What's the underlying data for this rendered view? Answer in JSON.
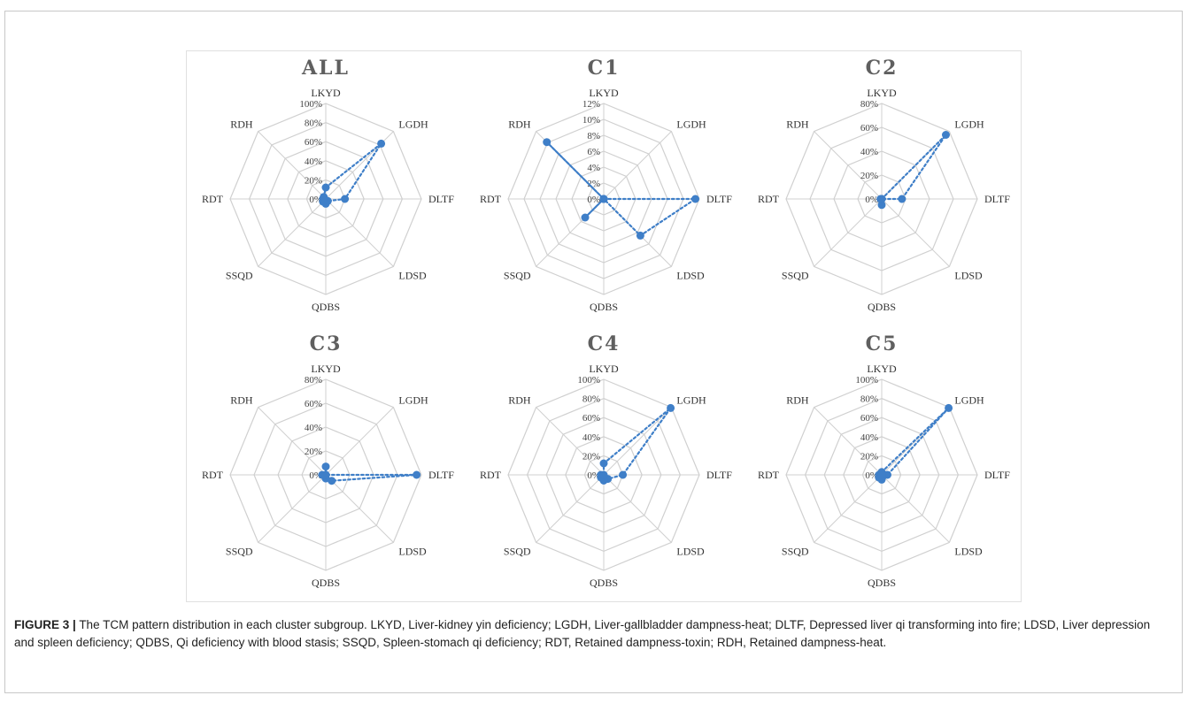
{
  "caption": {
    "label": "FIGURE 3 |",
    "text": "The TCM pattern distribution in each cluster subgroup. LKYD, Liver-kidney yin deficiency; LGDH, Liver-gallbladder dampness-heat; DLTF, Depressed liver qi transforming into fire; LDSD, Liver depression and spleen deficiency; QDBS, Qi deficiency with blood stasis; SSQD, Spleen-stomach qi deficiency; RDT, Retained dampness-toxin; RDH, Retained dampness-heat."
  },
  "colors": {
    "series": "#3f7fc8",
    "grid": "#d0d0d0",
    "title": "#5f5f5f"
  },
  "chart_data": [
    {
      "type": "radar",
      "title": "ALL",
      "categories": [
        "LKYD",
        "LGDH",
        "DLTF",
        "LDSD",
        "QDBS",
        "SSQD",
        "RDT",
        "RDH"
      ],
      "ticks": [
        "0%",
        "20%",
        "40%",
        "60%",
        "80%",
        "100%"
      ],
      "max": 100,
      "values": [
        12,
        82,
        20,
        3,
        5,
        4,
        3,
        3
      ]
    },
    {
      "type": "radar",
      "title": "C1",
      "categories": [
        "LKYD",
        "LGDH",
        "DLTF",
        "LDSD",
        "QDBS",
        "SSQD",
        "RDT",
        "RDH"
      ],
      "ticks": [
        "0%",
        "2%",
        "4%",
        "6%",
        "8%",
        "10%",
        "12%"
      ],
      "max": 12,
      "values": [
        0,
        0,
        11.5,
        6.5,
        0,
        3.3,
        0,
        10.1
      ]
    },
    {
      "type": "radar",
      "title": "C2",
      "categories": [
        "LKYD",
        "LGDH",
        "DLTF",
        "LDSD",
        "QDBS",
        "SSQD",
        "RDT",
        "RDH"
      ],
      "ticks": [
        "0%",
        "20%",
        "40%",
        "60%",
        "80%"
      ],
      "max": 80,
      "values": [
        0,
        76,
        17,
        0,
        5,
        0,
        1,
        0
      ]
    },
    {
      "type": "radar",
      "title": "C3",
      "categories": [
        "LKYD",
        "LGDH",
        "DLTF",
        "LDSD",
        "QDBS",
        "SSQD",
        "RDT",
        "RDH"
      ],
      "ticks": [
        "0%",
        "20%",
        "40%",
        "60%",
        "80%"
      ],
      "max": 80,
      "values": [
        7,
        0,
        76,
        7,
        3,
        0,
        3,
        0
      ]
    },
    {
      "type": "radar",
      "title": "C4",
      "categories": [
        "LKYD",
        "LGDH",
        "DLTF",
        "LDSD",
        "QDBS",
        "SSQD",
        "RDT",
        "RDH"
      ],
      "ticks": [
        "0%",
        "20%",
        "40%",
        "60%",
        "80%",
        "100%"
      ],
      "max": 100,
      "values": [
        12,
        99,
        20,
        6,
        6,
        4,
        3,
        0
      ]
    },
    {
      "type": "radar",
      "title": "C5",
      "categories": [
        "LKYD",
        "LGDH",
        "DLTF",
        "LDSD",
        "QDBS",
        "SSQD",
        "RDT",
        "RDH"
      ],
      "ticks": [
        "0%",
        "20%",
        "40%",
        "60%",
        "80%",
        "100%"
      ],
      "max": 100,
      "values": [
        3,
        99,
        6,
        2,
        5,
        4,
        3,
        0
      ]
    }
  ]
}
